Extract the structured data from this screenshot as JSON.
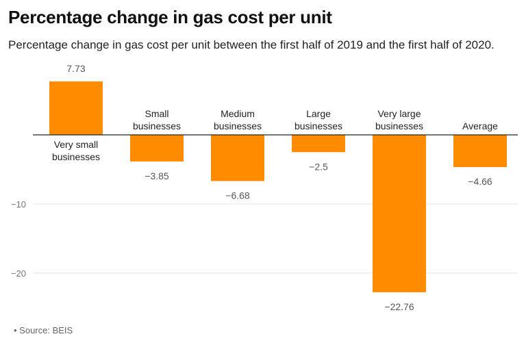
{
  "chart_data": {
    "type": "bar",
    "title": "Percentage change in gas cost per unit",
    "subtitle": "Percentage change in gas cost per unit between the first half of 2019 and the first half of 2020.",
    "categories": [
      "Very small businesses",
      "Small businesses",
      "Medium businesses",
      "Large businesses",
      "Very large businesses",
      "Average"
    ],
    "values": [
      7.73,
      -3.85,
      -6.68,
      -2.5,
      -22.76,
      -4.66
    ],
    "value_labels": [
      "7.73",
      "−3.85",
      "−6.68",
      "−2.5",
      "−22.76",
      "−4.66"
    ],
    "y_ticks": [
      -10,
      -20
    ],
    "y_tick_labels": [
      "−10",
      "−20"
    ],
    "ylim": [
      -23.6,
      9.6
    ],
    "grid": true,
    "bar_color": "#ff8c00",
    "xlabel": "",
    "ylabel": ""
  },
  "source": "Source: BEIS"
}
